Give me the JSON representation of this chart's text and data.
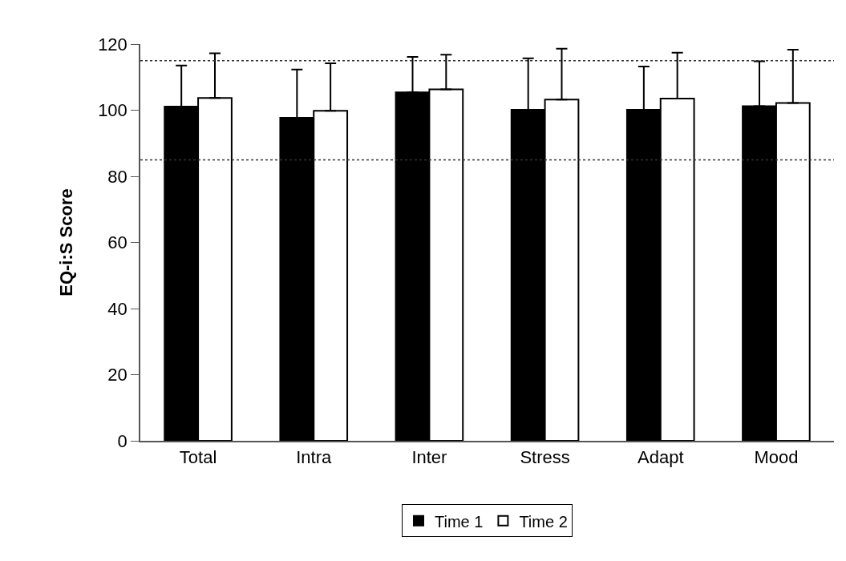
{
  "chart_data": {
    "type": "bar",
    "ylabel": "EQ-i:S Score",
    "categories": [
      "Total",
      "Intra",
      "Inter",
      "Stress",
      "Adapt",
      "Mood"
    ],
    "series": [
      {
        "name": "Time 1",
        "color": "#000000",
        "values": [
          101.1,
          97.7,
          105.4,
          100.1,
          100.1,
          101.2
        ],
        "errors": [
          [
            101.1,
            113.5
          ],
          [
            97.7,
            112.3
          ],
          [
            105.4,
            116.1
          ],
          [
            100.1,
            115.7
          ],
          [
            100.1,
            113.2
          ],
          [
            101.2,
            114.8
          ]
        ]
      },
      {
        "name": "Time 2",
        "color": "#ffffff",
        "values": [
          103.7,
          99.8,
          106.3,
          103.2,
          103.5,
          102.2
        ],
        "errors": [
          [
            103.7,
            117.2
          ],
          [
            99.8,
            114.2
          ],
          [
            106.3,
            116.8
          ],
          [
            103.2,
            118.6
          ],
          [
            103.5,
            117.4
          ],
          [
            102.2,
            118.3
          ]
        ]
      }
    ],
    "ylim": [
      0,
      120
    ],
    "yticks": [
      0,
      20,
      40,
      60,
      80,
      100,
      120
    ],
    "ref_lines": [
      {
        "axis": "y",
        "value": 115,
        "color": "#333333",
        "line_style": "dotted"
      },
      {
        "axis": "y",
        "value": 85,
        "color": "#333333",
        "line_style": "dotted"
      }
    ],
    "legend": "bottom"
  }
}
